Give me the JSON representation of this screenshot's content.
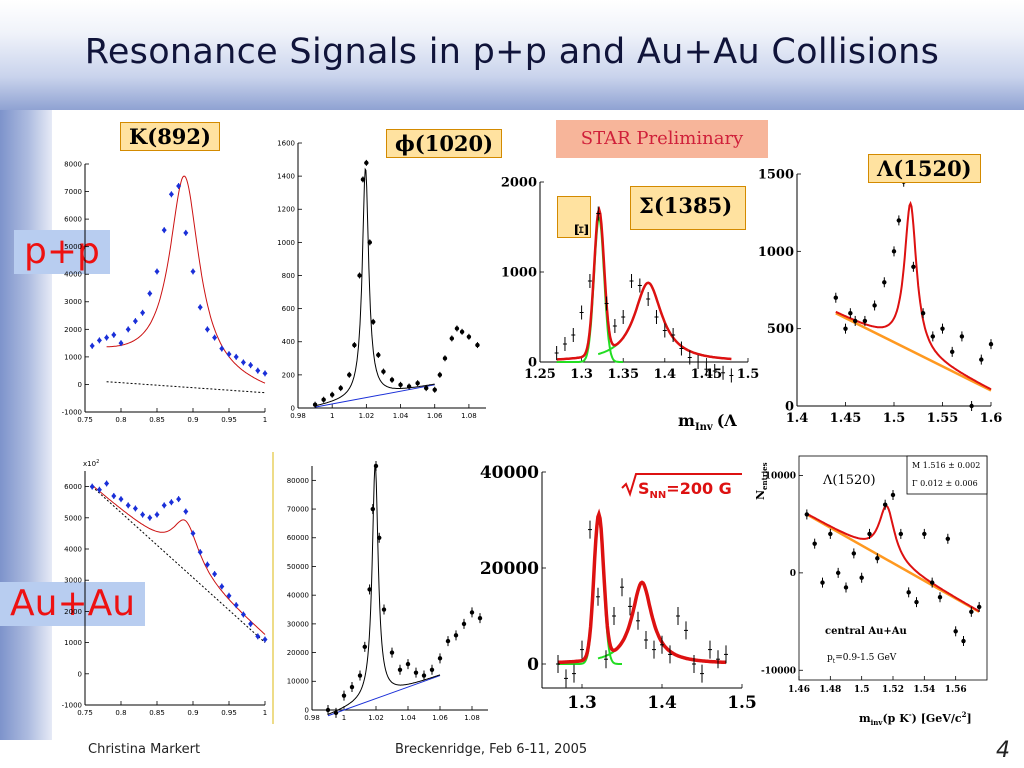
{
  "slide": {
    "title": "Resonance Signals in p+p and Au+Au Collisions",
    "author": "Christina Markert",
    "event": "Breckenridge, Feb 6-11, 2005",
    "page_number": "4"
  },
  "labels": {
    "pp": "p+p",
    "auau": "Au+Au",
    "star_preliminary": "STAR Preliminary",
    "k892": "K(892)",
    "phi1020": "ϕ(1020)",
    "sigma1385": "Σ(1385)",
    "xi": "Ξ",
    "lambda1520_box": "Λ(1520)",
    "minv_fragment": "m",
    "minv_sub": "Inv",
    "minv_paren": "(Λ",
    "sqrt_snn": "S",
    "sqrt_snn_sub": "NN",
    "sqrt_snn_rest": "=200 G",
    "n_entries": "N",
    "n_entries_sub": "entries",
    "lambda_inset": "Λ(1520)",
    "fit_M": "M   1.516 ± 0.002",
    "fit_G": "Γ   0.012 ± 0.006",
    "central_auau": "central Au+Au",
    "pt_range": "p",
    "pt_sub": "t",
    "pt_value": "=0.9-1.5 GeV",
    "minv_bottom": "m",
    "minv_bottom_sub": "inv",
    "minv_bottom_rest": "(p K",
    "minv_bottom_sup": "-",
    "minv_bottom_unit": ")   [GeV/c",
    "minv_bottom_unit_sup": "2",
    "minv_bottom_close": "]",
    "x10_2": "x10",
    "x10_2_sup": "2"
  },
  "chart_data": [
    {
      "id": "k892-pp",
      "type": "scatter",
      "xlim": [
        0.75,
        1.0
      ],
      "ylim": [
        -1000,
        8000
      ],
      "xticks": [
        "0.75",
        "0.8",
        "0.85",
        "0.9",
        "0.95",
        "1"
      ],
      "xtick_values": [
        0.75,
        0.8,
        0.85,
        0.9,
        0.95,
        1.0
      ],
      "yticks": [
        "-1000",
        "0",
        "1000",
        "2000",
        "3000",
        "4000",
        "5000",
        "6000",
        "7000",
        "8000"
      ],
      "ytick_values": [
        -1000,
        0,
        1000,
        2000,
        3000,
        4000,
        5000,
        6000,
        7000,
        8000
      ],
      "x": [
        0.76,
        0.77,
        0.78,
        0.79,
        0.8,
        0.81,
        0.82,
        0.83,
        0.84,
        0.85,
        0.86,
        0.87,
        0.88,
        0.89,
        0.9,
        0.91,
        0.92,
        0.93,
        0.94,
        0.95,
        0.96,
        0.97,
        0.98,
        0.99,
        1.0
      ],
      "y": [
        1400,
        1600,
        1700,
        1800,
        1500,
        2000,
        2300,
        2600,
        3300,
        4100,
        5600,
        6900,
        7200,
        5500,
        4100,
        2800,
        2000,
        1700,
        1300,
        1100,
        1000,
        800,
        700,
        500,
        400
      ]
    },
    {
      "id": "phi1020-pp",
      "type": "scatter",
      "xlim": [
        0.98,
        1.09
      ],
      "ylim": [
        0,
        1600
      ],
      "xticks": [
        "0.98",
        "1",
        "1.02",
        "1.04",
        "1.06",
        "1.08"
      ],
      "xtick_values": [
        0.98,
        1.0,
        1.02,
        1.04,
        1.06,
        1.08
      ],
      "yticks": [
        "0",
        "200",
        "400",
        "600",
        "800",
        "1000",
        "1200",
        "1400",
        "1600"
      ],
      "ytick_values": [
        0,
        200,
        400,
        600,
        800,
        1000,
        1200,
        1400,
        1600
      ],
      "x": [
        0.99,
        0.995,
        1.0,
        1.005,
        1.01,
        1.013,
        1.016,
        1.018,
        1.02,
        1.022,
        1.024,
        1.027,
        1.03,
        1.035,
        1.04,
        1.045,
        1.05,
        1.055,
        1.06,
        1.063,
        1.066,
        1.07,
        1.073,
        1.076,
        1.08,
        1.085
      ],
      "y": [
        20,
        50,
        80,
        120,
        200,
        380,
        800,
        1380,
        1480,
        1000,
        520,
        320,
        220,
        170,
        140,
        130,
        150,
        120,
        110,
        200,
        300,
        420,
        480,
        460,
        430,
        380
      ]
    },
    {
      "id": "sigma-xi-pp",
      "type": "scatter",
      "xlim": [
        1.25,
        1.5
      ],
      "ylim": [
        0,
        2000
      ],
      "xticks": [
        "1.25",
        "1.3",
        "1.35",
        "1.4",
        "1.45",
        "1.5"
      ],
      "xtick_values": [
        1.25,
        1.3,
        1.35,
        1.4,
        1.45,
        1.5
      ],
      "yticks": [
        "0",
        "1000",
        "2000"
      ],
      "ytick_values": [
        0,
        1000,
        2000
      ],
      "x": [
        1.27,
        1.28,
        1.29,
        1.3,
        1.31,
        1.32,
        1.33,
        1.34,
        1.35,
        1.36,
        1.37,
        1.38,
        1.39,
        1.4,
        1.41,
        1.42,
        1.43,
        1.44,
        1.45,
        1.46,
        1.47,
        1.48
      ],
      "y": [
        100,
        200,
        300,
        550,
        900,
        1650,
        650,
        400,
        500,
        900,
        850,
        700,
        500,
        350,
        300,
        150,
        50,
        0,
        -80,
        -100,
        -120,
        -150
      ]
    },
    {
      "id": "lambda1520-pp",
      "type": "scatter",
      "xlim": [
        1.4,
        1.6
      ],
      "ylim": [
        0,
        1500
      ],
      "xticks": [
        "1.4",
        "1.45",
        "1.5",
        "1.55",
        "1.6"
      ],
      "xtick_values": [
        1.4,
        1.45,
        1.5,
        1.55,
        1.6
      ],
      "yticks": [
        "0",
        "500",
        "1000",
        "1500"
      ],
      "ytick_values": [
        0,
        500,
        1000,
        1500
      ],
      "x": [
        1.44,
        1.45,
        1.455,
        1.46,
        1.47,
        1.48,
        1.49,
        1.5,
        1.505,
        1.51,
        1.52,
        1.53,
        1.54,
        1.55,
        1.56,
        1.57,
        1.58,
        1.59,
        1.6
      ],
      "y": [
        700,
        500,
        600,
        550,
        550,
        650,
        800,
        1000,
        1200,
        1450,
        900,
        600,
        450,
        500,
        350,
        450,
        0,
        300,
        400
      ]
    },
    {
      "id": "k892-auau",
      "type": "scatter",
      "xlim": [
        0.75,
        1.0
      ],
      "ylim": [
        -1000,
        6500
      ],
      "xticks": [
        "0.75",
        "0.8",
        "0.85",
        "0.9",
        "0.95",
        "1"
      ],
      "xtick_values": [
        0.75,
        0.8,
        0.85,
        0.9,
        0.95,
        1.0
      ],
      "yticks": [
        "-1000",
        "0",
        "1000",
        "2000",
        "3000",
        "4000",
        "5000",
        "6000"
      ],
      "ytick_values": [
        -1000,
        0,
        1000,
        2000,
        3000,
        4000,
        5000,
        6000
      ],
      "x": [
        0.76,
        0.77,
        0.78,
        0.79,
        0.8,
        0.81,
        0.82,
        0.83,
        0.84,
        0.85,
        0.86,
        0.87,
        0.88,
        0.89,
        0.9,
        0.91,
        0.92,
        0.93,
        0.94,
        0.95,
        0.96,
        0.97,
        0.98,
        0.99,
        1.0
      ],
      "y": [
        6000,
        5900,
        6100,
        5700,
        5600,
        5400,
        5300,
        5100,
        5000,
        5100,
        5400,
        5500,
        5600,
        5200,
        4500,
        3900,
        3500,
        3200,
        2800,
        2500,
        2200,
        1900,
        1600,
        1200,
        1100
      ]
    },
    {
      "id": "phi1020-auau",
      "type": "scatter",
      "xlim": [
        0.98,
        1.09
      ],
      "ylim": [
        0,
        85000
      ],
      "xticks": [
        "0.98",
        "1",
        "1.02",
        "1.04",
        "1.06",
        "1.08"
      ],
      "xtick_values": [
        0.98,
        1.0,
        1.02,
        1.04,
        1.06,
        1.08
      ],
      "yticks": [
        "0",
        "10000",
        "20000",
        "30000",
        "40000",
        "50000",
        "60000",
        "70000",
        "80000"
      ],
      "ytick_values": [
        0,
        10000,
        20000,
        30000,
        40000,
        50000,
        60000,
        70000,
        80000
      ],
      "x": [
        0.99,
        0.995,
        1.0,
        1.005,
        1.01,
        1.013,
        1.016,
        1.018,
        1.02,
        1.022,
        1.025,
        1.03,
        1.035,
        1.04,
        1.045,
        1.05,
        1.055,
        1.06,
        1.065,
        1.07,
        1.075,
        1.08,
        1.085
      ],
      "y": [
        0,
        -1000,
        5000,
        8000,
        12000,
        22000,
        42000,
        70000,
        85000,
        60000,
        35000,
        20000,
        14000,
        16000,
        13000,
        12000,
        14000,
        18000,
        24000,
        26000,
        30000,
        34000,
        32000
      ]
    },
    {
      "id": "sigma-auau",
      "type": "scatter",
      "xlim": [
        1.25,
        1.5
      ],
      "ylim": [
        -5000,
        40000
      ],
      "xticks": [
        "1.3",
        "1.4",
        "1.5"
      ],
      "xtick_values": [
        1.3,
        1.4,
        1.5
      ],
      "yticks": [
        "0",
        "20000",
        "40000"
      ],
      "ytick_values": [
        0,
        20000,
        40000
      ],
      "x": [
        1.27,
        1.28,
        1.29,
        1.3,
        1.31,
        1.32,
        1.33,
        1.34,
        1.35,
        1.36,
        1.37,
        1.38,
        1.39,
        1.4,
        1.41,
        1.42,
        1.43,
        1.44,
        1.45,
        1.46,
        1.47,
        1.48
      ],
      "y": [
        0,
        -3000,
        -2000,
        3000,
        28000,
        14000,
        1000,
        10000,
        16000,
        12000,
        9000,
        5000,
        3000,
        4000,
        2000,
        10000,
        7000,
        0,
        -2000,
        3000,
        1000,
        2000
      ]
    },
    {
      "id": "lambda1520-auau",
      "type": "scatter",
      "xlim": [
        1.46,
        1.58
      ],
      "ylim": [
        -11000,
        12000
      ],
      "xticks": [
        "1.46",
        "1.48",
        "1.5",
        "1.52",
        "1.54",
        "1.56"
      ],
      "xtick_values": [
        1.46,
        1.48,
        1.5,
        1.52,
        1.54,
        1.56
      ],
      "yticks": [
        "-10000",
        "0",
        "10000"
      ],
      "ytick_values": [
        -10000,
        0,
        10000
      ],
      "x": [
        1.465,
        1.47,
        1.475,
        1.48,
        1.485,
        1.49,
        1.495,
        1.5,
        1.505,
        1.51,
        1.515,
        1.52,
        1.525,
        1.53,
        1.535,
        1.54,
        1.545,
        1.55,
        1.555,
        1.56,
        1.565,
        1.57,
        1.575
      ],
      "y": [
        6000,
        3000,
        -1000,
        4000,
        0,
        -1500,
        2000,
        -500,
        4000,
        1500,
        7000,
        8000,
        4000,
        -2000,
        -3000,
        4000,
        -1000,
        -2500,
        3500,
        -6000,
        -7000,
        -4000,
        -3500
      ]
    }
  ]
}
